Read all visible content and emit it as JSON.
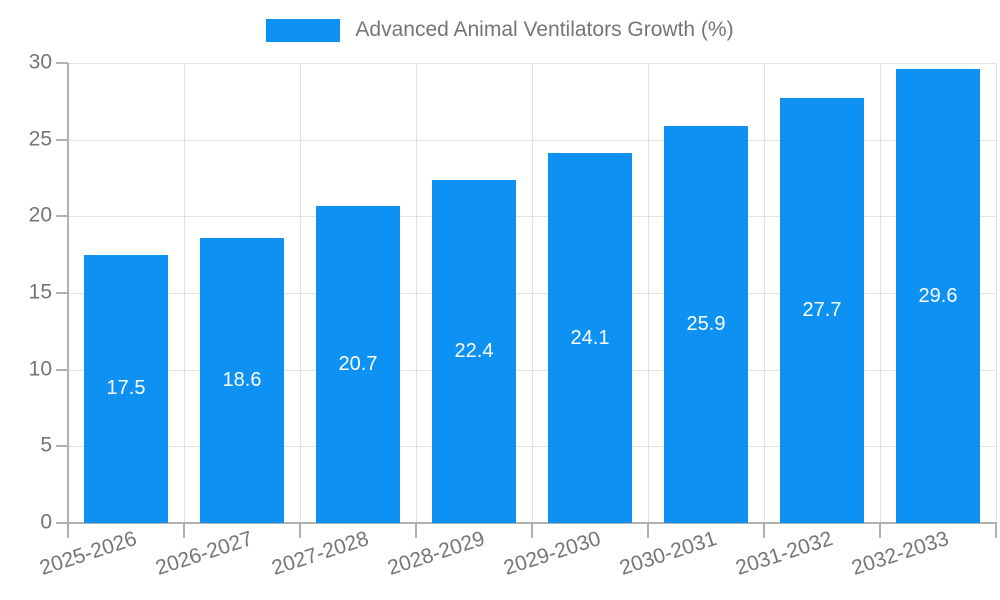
{
  "chart_data": {
    "type": "bar",
    "title": "Advanced Animal Ventilators Growth (%)",
    "categories": [
      "2025-2026",
      "2026-2027",
      "2027-2028",
      "2028-2029",
      "2029-2030",
      "2030-2031",
      "2031-2032",
      "2032-2033"
    ],
    "values": [
      17.5,
      18.6,
      20.7,
      22.4,
      24.1,
      25.9,
      27.7,
      29.6
    ],
    "xlabel": "",
    "ylabel": "",
    "ylim": [
      0,
      30
    ],
    "yticks": [
      0,
      5,
      10,
      15,
      20,
      25,
      30
    ],
    "grid": true,
    "legend_position": "top",
    "bar_color": "#0d92f4",
    "value_label_color": "#ffffff",
    "x_tick_rotation_deg": -18
  },
  "legend": {
    "label": "Advanced Animal Ventilators Growth (%)",
    "swatch_color": "#0d92f4"
  },
  "colors": {
    "background": "#ffffff",
    "grid": "#e2e2e2",
    "axis": "#b0b0b0",
    "tick_text": "#757575"
  }
}
